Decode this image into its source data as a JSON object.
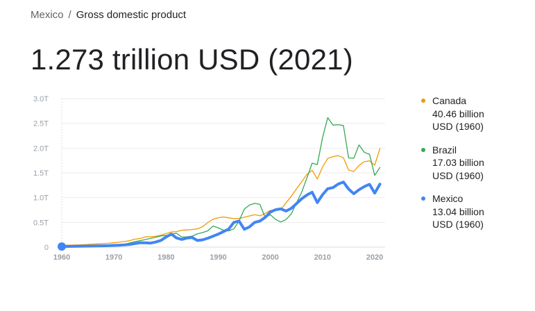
{
  "breadcrumb": {
    "country": "Mexico",
    "separator": "/",
    "indicator": "Gross domestic product"
  },
  "headline": "1.273 trillion USD (2021)",
  "colors": {
    "canada": "#f29900",
    "brazil": "#34a853",
    "mexico": "#4285f4",
    "grid": "#ebebeb",
    "tick": "#9aa0a6"
  },
  "chart_data": {
    "type": "line",
    "ylim": [
      0,
      3.0
    ],
    "xlim": [
      1960,
      2022
    ],
    "y_ticks": [
      0,
      0.5,
      1.0,
      1.5,
      2.0,
      2.5,
      3.0
    ],
    "y_tick_labels": [
      "0",
      "0.5T",
      "1.0T",
      "1.5T",
      "2.0T",
      "2.5T",
      "3.0T"
    ],
    "x_ticks": [
      1960,
      1970,
      1980,
      1990,
      2000,
      2010,
      2020
    ],
    "x_tick_labels": [
      "1960",
      "1970",
      "1980",
      "1990",
      "2000",
      "2010",
      "2020"
    ],
    "x": [
      1960,
      1961,
      1962,
      1963,
      1964,
      1965,
      1966,
      1967,
      1968,
      1969,
      1970,
      1971,
      1972,
      1973,
      1974,
      1975,
      1976,
      1977,
      1978,
      1979,
      1980,
      1981,
      1982,
      1983,
      1984,
      1985,
      1986,
      1987,
      1988,
      1989,
      1990,
      1991,
      1992,
      1993,
      1994,
      1995,
      1996,
      1997,
      1998,
      1999,
      2000,
      2001,
      2002,
      2003,
      2004,
      2005,
      2006,
      2007,
      2008,
      2009,
      2010,
      2011,
      2012,
      2013,
      2014,
      2015,
      2016,
      2017,
      2018,
      2019,
      2020,
      2021
    ],
    "series": [
      {
        "key": "canada",
        "name": "Canada",
        "values": [
          0.04,
          0.041,
          0.042,
          0.045,
          0.049,
          0.054,
          0.062,
          0.066,
          0.071,
          0.079,
          0.088,
          0.1,
          0.113,
          0.131,
          0.161,
          0.173,
          0.206,
          0.212,
          0.218,
          0.243,
          0.274,
          0.305,
          0.314,
          0.341,
          0.348,
          0.356,
          0.368,
          0.414,
          0.498,
          0.565,
          0.594,
          0.61,
          0.592,
          0.578,
          0.579,
          0.604,
          0.629,
          0.654,
          0.634,
          0.678,
          0.744,
          0.738,
          0.76,
          0.895,
          1.026,
          1.173,
          1.319,
          1.469,
          1.553,
          1.376,
          1.617,
          1.793,
          1.828,
          1.847,
          1.806,
          1.556,
          1.528,
          1.65,
          1.725,
          1.742,
          1.655,
          1.99
        ]
      },
      {
        "key": "brazil",
        "name": "Brazil",
        "values": [
          0.017,
          0.015,
          0.02,
          0.023,
          0.021,
          0.022,
          0.027,
          0.03,
          0.033,
          0.037,
          0.042,
          0.049,
          0.059,
          0.084,
          0.111,
          0.131,
          0.153,
          0.177,
          0.201,
          0.225,
          0.235,
          0.263,
          0.281,
          0.203,
          0.209,
          0.223,
          0.268,
          0.294,
          0.33,
          0.425,
          0.391,
          0.342,
          0.328,
          0.368,
          0.526,
          0.77,
          0.85,
          0.883,
          0.864,
          0.599,
          0.655,
          0.559,
          0.508,
          0.558,
          0.669,
          0.892,
          1.108,
          1.397,
          1.696,
          1.667,
          2.209,
          2.616,
          2.465,
          2.473,
          2.456,
          1.802,
          1.796,
          2.064,
          1.917,
          1.873,
          1.448,
          1.609
        ]
      },
      {
        "key": "mexico",
        "name": "Mexico",
        "values": [
          0.013,
          0.014,
          0.015,
          0.017,
          0.019,
          0.021,
          0.023,
          0.025,
          0.027,
          0.03,
          0.035,
          0.039,
          0.045,
          0.055,
          0.072,
          0.088,
          0.089,
          0.082,
          0.103,
          0.135,
          0.205,
          0.263,
          0.185,
          0.156,
          0.184,
          0.195,
          0.135,
          0.147,
          0.181,
          0.222,
          0.262,
          0.314,
          0.363,
          0.5,
          0.527,
          0.36,
          0.41,
          0.5,
          0.527,
          0.6,
          0.708,
          0.756,
          0.772,
          0.729,
          0.782,
          0.877,
          0.975,
          1.053,
          1.109,
          0.9,
          1.058,
          1.18,
          1.202,
          1.274,
          1.315,
          1.172,
          1.078,
          1.159,
          1.222,
          1.269,
          1.091,
          1.273
        ]
      }
    ],
    "legend": [
      {
        "key": "canada",
        "name": "Canada",
        "detail": "40.46 billion USD (1960)"
      },
      {
        "key": "brazil",
        "name": "Brazil",
        "detail": "17.03 billion USD (1960)"
      },
      {
        "key": "mexico",
        "name": "Mexico",
        "detail": "13.04 billion USD (1960)"
      }
    ],
    "legend_position": "right",
    "grid": true
  }
}
